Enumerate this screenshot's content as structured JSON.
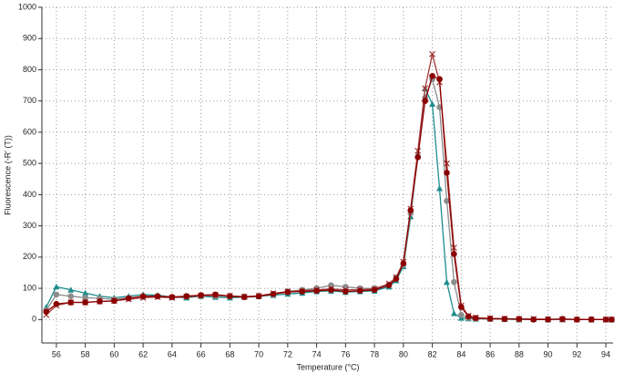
{
  "chart_data": {
    "type": "line",
    "x_label": "Temperature (°C)",
    "y_label": "Fluorescence (-R' (T))",
    "xlim": [
      55,
      94.5
    ],
    "ylim": [
      -75,
      1000
    ],
    "xticks": [
      56,
      58,
      60,
      62,
      64,
      66,
      68,
      70,
      72,
      74,
      76,
      78,
      80,
      82,
      84,
      86,
      88,
      90,
      92,
      94
    ],
    "yticks": [
      0,
      100,
      200,
      300,
      400,
      500,
      600,
      700,
      800,
      900,
      1000
    ],
    "grid": true,
    "x": [
      55.3,
      56,
      57,
      58,
      59,
      60,
      61,
      62,
      63,
      64,
      65,
      66,
      67,
      68,
      69,
      70,
      71,
      72,
      73,
      74,
      75,
      76,
      77,
      78,
      79,
      79.5,
      80,
      80.5,
      81,
      81.5,
      82,
      82.5,
      83,
      83.5,
      84,
      84.5,
      85,
      86,
      87,
      88,
      89,
      90,
      91,
      92,
      93,
      94,
      94.4
    ],
    "series": [
      {
        "color": "#1f8c8c",
        "marker": "triangle",
        "values": [
          40,
          105,
          95,
          85,
          75,
          70,
          75,
          80,
          78,
          72,
          70,
          75,
          72,
          70,
          72,
          74,
          78,
          82,
          85,
          90,
          92,
          88,
          90,
          92,
          105,
          125,
          170,
          330,
          530,
          740,
          690,
          420,
          120,
          20,
          5,
          3,
          2,
          2,
          1,
          0,
          1,
          0,
          0,
          1,
          0,
          0,
          0
        ]
      },
      {
        "color": "#8c8c8c",
        "marker": "circle",
        "values": [
          30,
          80,
          75,
          70,
          68,
          65,
          70,
          72,
          74,
          72,
          75,
          78,
          76,
          74,
          74,
          75,
          80,
          90,
          95,
          100,
          110,
          105,
          100,
          100,
          112,
          135,
          175,
          340,
          520,
          710,
          770,
          680,
          380,
          120,
          15,
          5,
          3,
          2,
          1,
          1,
          0,
          1,
          0,
          0,
          1,
          0,
          0
        ]
      },
      {
        "color": "#a33a3a",
        "marker": "cross",
        "values": [
          15,
          45,
          55,
          55,
          58,
          60,
          65,
          70,
          72,
          70,
          73,
          76,
          78,
          76,
          73,
          76,
          84,
          90,
          92,
          95,
          98,
          95,
          96,
          98,
          115,
          135,
          185,
          355,
          540,
          740,
          850,
          760,
          500,
          230,
          45,
          12,
          6,
          4,
          3,
          2,
          2,
          1,
          1,
          0,
          0,
          0,
          0
        ]
      },
      {
        "color": "#8b0000",
        "marker": "circle",
        "values": [
          25,
          50,
          55,
          55,
          58,
          60,
          68,
          75,
          75,
          72,
          75,
          78,
          80,
          75,
          72,
          75,
          82,
          88,
          90,
          92,
          95,
          90,
          92,
          95,
          110,
          130,
          180,
          350,
          520,
          700,
          780,
          770,
          470,
          210,
          40,
          10,
          5,
          3,
          2,
          2,
          0,
          0,
          2,
          0,
          0,
          0,
          0
        ]
      }
    ]
  }
}
